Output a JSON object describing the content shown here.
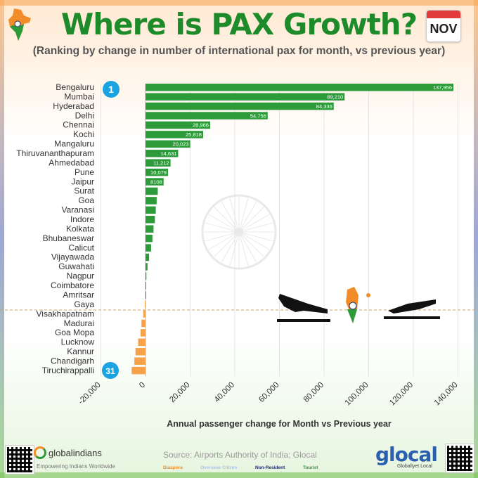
{
  "header": {
    "title": "Where is PAX Growth?",
    "month_badge": "NOV",
    "subtitle": "(Ranking by change in number of international pax for month, vs previous year)"
  },
  "rank_badges": {
    "first": "1",
    "last": "31"
  },
  "footer": {
    "source": "Source: Airports Authority of India; Glocal",
    "globalindians_name": "globalindians",
    "globalindians_tagline": "Empowering Indians Worldwide",
    "glocal_name": "glocal",
    "glocal_tagline": "Globallyet Local",
    "legend": [
      {
        "label": "Diaspora",
        "color": "#f28c28"
      },
      {
        "label": "Overseas Citizen",
        "color": "#a9c4e8"
      },
      {
        "label": "Non-Resident",
        "color": "#1c2e6e"
      },
      {
        "label": "Tourist",
        "color": "#2e9b3a"
      }
    ]
  },
  "colors": {
    "positive": "#2e9b3a",
    "negative": "#f7a24a",
    "title": "#1e8b2a",
    "badge": "#1aa3e0"
  },
  "chart_data": {
    "type": "bar",
    "orientation": "horizontal",
    "title": "",
    "xlabel": "Annual passenger change for Month vs Previous year",
    "ylabel": "",
    "xlim": [
      -20000,
      140000
    ],
    "xticks": [
      "-20,000",
      "0",
      "20,000",
      "40,000",
      "60,000",
      "80,000",
      "100,000",
      "120,000",
      "140,000"
    ],
    "xtick_values": [
      -20000,
      0,
      20000,
      40000,
      60000,
      80000,
      100000,
      120000,
      140000
    ],
    "grid": true,
    "categories": [
      "Bengaluru",
      "Mumbai",
      "Hyderabad",
      "Delhi",
      "Chennai",
      "Kochi",
      "Mangaluru",
      "Thiruvananthapuram",
      "Ahmedabad",
      "Pune",
      "Jaipur",
      "Surat",
      "Goa",
      "Varanasi",
      "Indore",
      "Kolkata",
      "Bhubaneswar",
      "Calicut",
      "Vijayawada",
      "Guwahati",
      "Nagpur",
      "Coimbatore",
      "Amritsar",
      "Gaya",
      "Visakhapatnam",
      "Madurai",
      "Goa Mopa",
      "Lucknow",
      "Kannur",
      "Chandigarh",
      "Tiruchirappalli"
    ],
    "values": [
      137956,
      89210,
      84336,
      54756,
      28966,
      25818,
      20023,
      14631,
      11212,
      10079,
      8108,
      5500,
      5000,
      4600,
      4200,
      3600,
      3100,
      2500,
      1600,
      900,
      400,
      200,
      100,
      -300,
      -1000,
      -1800,
      -2200,
      -3300,
      -4500,
      -5000,
      -6200
    ],
    "data_labels": [
      "137,956",
      "89,210",
      "84,336",
      "54,756",
      "28,966",
      "25,818",
      "20,023",
      "14,631",
      "11,212",
      "10,079",
      "8108",
      "",
      "",
      "",
      "",
      "",
      "",
      "",
      "",
      "",
      "",
      "",
      "",
      "",
      "",
      "",
      "",
      "",
      "",
      "",
      ""
    ]
  }
}
